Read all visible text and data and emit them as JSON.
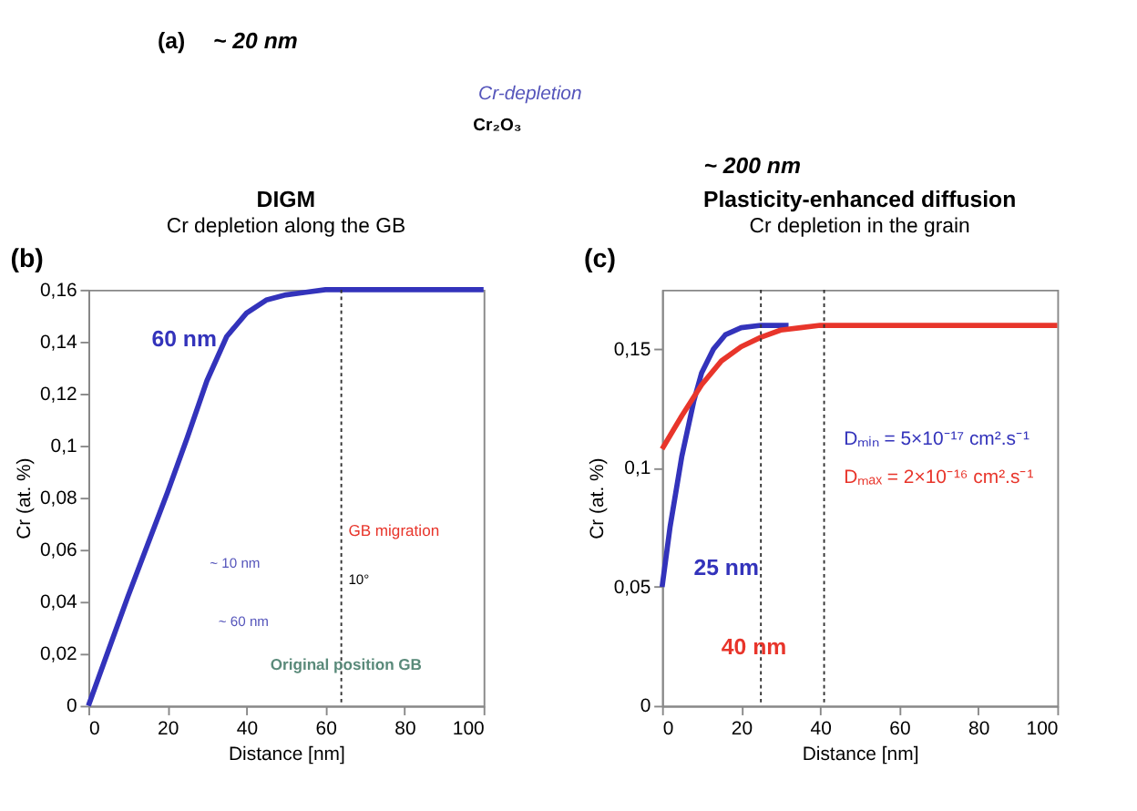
{
  "chart_data": [
    {
      "type": "other",
      "annotations": [
        "(a)",
        "~ 20 nm",
        "Cr-depletion",
        "Cr₂O₃",
        "~ 200 nm"
      ]
    },
    {
      "type": "line",
      "title": "DIGM",
      "subtitle": "Cr depletion along the GB",
      "xlabel": "Distance [nm]",
      "ylabel": "Cr (at. %)",
      "x": [
        0,
        5,
        10,
        15,
        20,
        25,
        30,
        35,
        40,
        45,
        50,
        55,
        60,
        65,
        70,
        80,
        90,
        100
      ],
      "series": [
        {
          "color": "#3333bb",
          "values": [
            0,
            0.021,
            0.042,
            0.062,
            0.082,
            0.103,
            0.125,
            0.142,
            0.151,
            0.156,
            0.158,
            0.159,
            0.16,
            0.16,
            0.16,
            0.16,
            0.16,
            0.16
          ]
        }
      ],
      "xlim": [
        0,
        100
      ],
      "xticks": [
        0,
        20,
        40,
        60,
        80,
        100
      ],
      "ylim": [
        0,
        0.16
      ],
      "yticks": [
        0,
        {
          "value": 0.02,
          "label": "0,02"
        },
        {
          "value": 0.04,
          "label": "0,04"
        },
        {
          "value": 0.06,
          "label": "0,06"
        },
        {
          "value": 0.08,
          "label": "0,08"
        },
        {
          "value": 0.1,
          "label": "0,1"
        },
        {
          "value": 0.12,
          "label": "0,12"
        },
        {
          "value": 0.14,
          "label": "0,14"
        },
        {
          "value": 0.16,
          "label": "0,16"
        }
      ],
      "ref_lines": [
        {
          "axis": "x",
          "value": 64,
          "line_style": "dotted",
          "color": "#333333"
        }
      ],
      "annotations": [
        "(b)",
        "60 nm",
        "GB migration",
        "~ 10 nm",
        "10°",
        "~ 60 nm",
        "Original position GB"
      ],
      "grid": false,
      "marker": "none",
      "line_style": "solid",
      "legend": false
    },
    {
      "type": "line",
      "title": "Plasticity-enhanced diffusion",
      "subtitle": "Cr depletion in the grain",
      "xlabel": "Distance [nm]",
      "ylabel": "Cr (at. %)",
      "series": [
        {
          "name": "Dₘᵢₙ = 5×10⁻¹⁷ cm².s⁻¹",
          "color": "#3333bb",
          "x": [
            0,
            2,
            5,
            8,
            10,
            13,
            16,
            20,
            25,
            32
          ],
          "values": [
            0.05,
            0.075,
            0.105,
            0.128,
            0.14,
            0.15,
            0.156,
            0.159,
            0.16,
            0.16
          ]
        },
        {
          "name": "Dₘₐₓ = 2×10⁻¹⁶ cm².s⁻¹",
          "color": "#e8352b",
          "x": [
            0,
            5,
            10,
            15,
            20,
            25,
            30,
            35,
            40,
            60,
            80,
            100
          ],
          "values": [
            0.108,
            0.122,
            0.135,
            0.145,
            0.151,
            0.155,
            0.158,
            0.159,
            0.16,
            0.16,
            0.16,
            0.16
          ]
        }
      ],
      "xlim": [
        0,
        100
      ],
      "xticks": [
        0,
        20,
        40,
        60,
        80,
        100
      ],
      "ylim": [
        0,
        0.175
      ],
      "yticks": [
        0,
        {
          "value": 0.05,
          "label": "0,05"
        },
        {
          "value": 0.1,
          "label": "0,1"
        },
        {
          "value": 0.15,
          "label": "0,15"
        }
      ],
      "ref_lines": [
        {
          "axis": "x",
          "value": 25,
          "line_style": "dotted",
          "color": "#333333"
        },
        {
          "axis": "x",
          "value": 41,
          "line_style": "dotted",
          "color": "#333333"
        }
      ],
      "annotations": [
        "(c)",
        "25 nm",
        "40 nm"
      ],
      "grid": false,
      "marker": "none",
      "line_style": "solid",
      "legend": "right"
    }
  ]
}
